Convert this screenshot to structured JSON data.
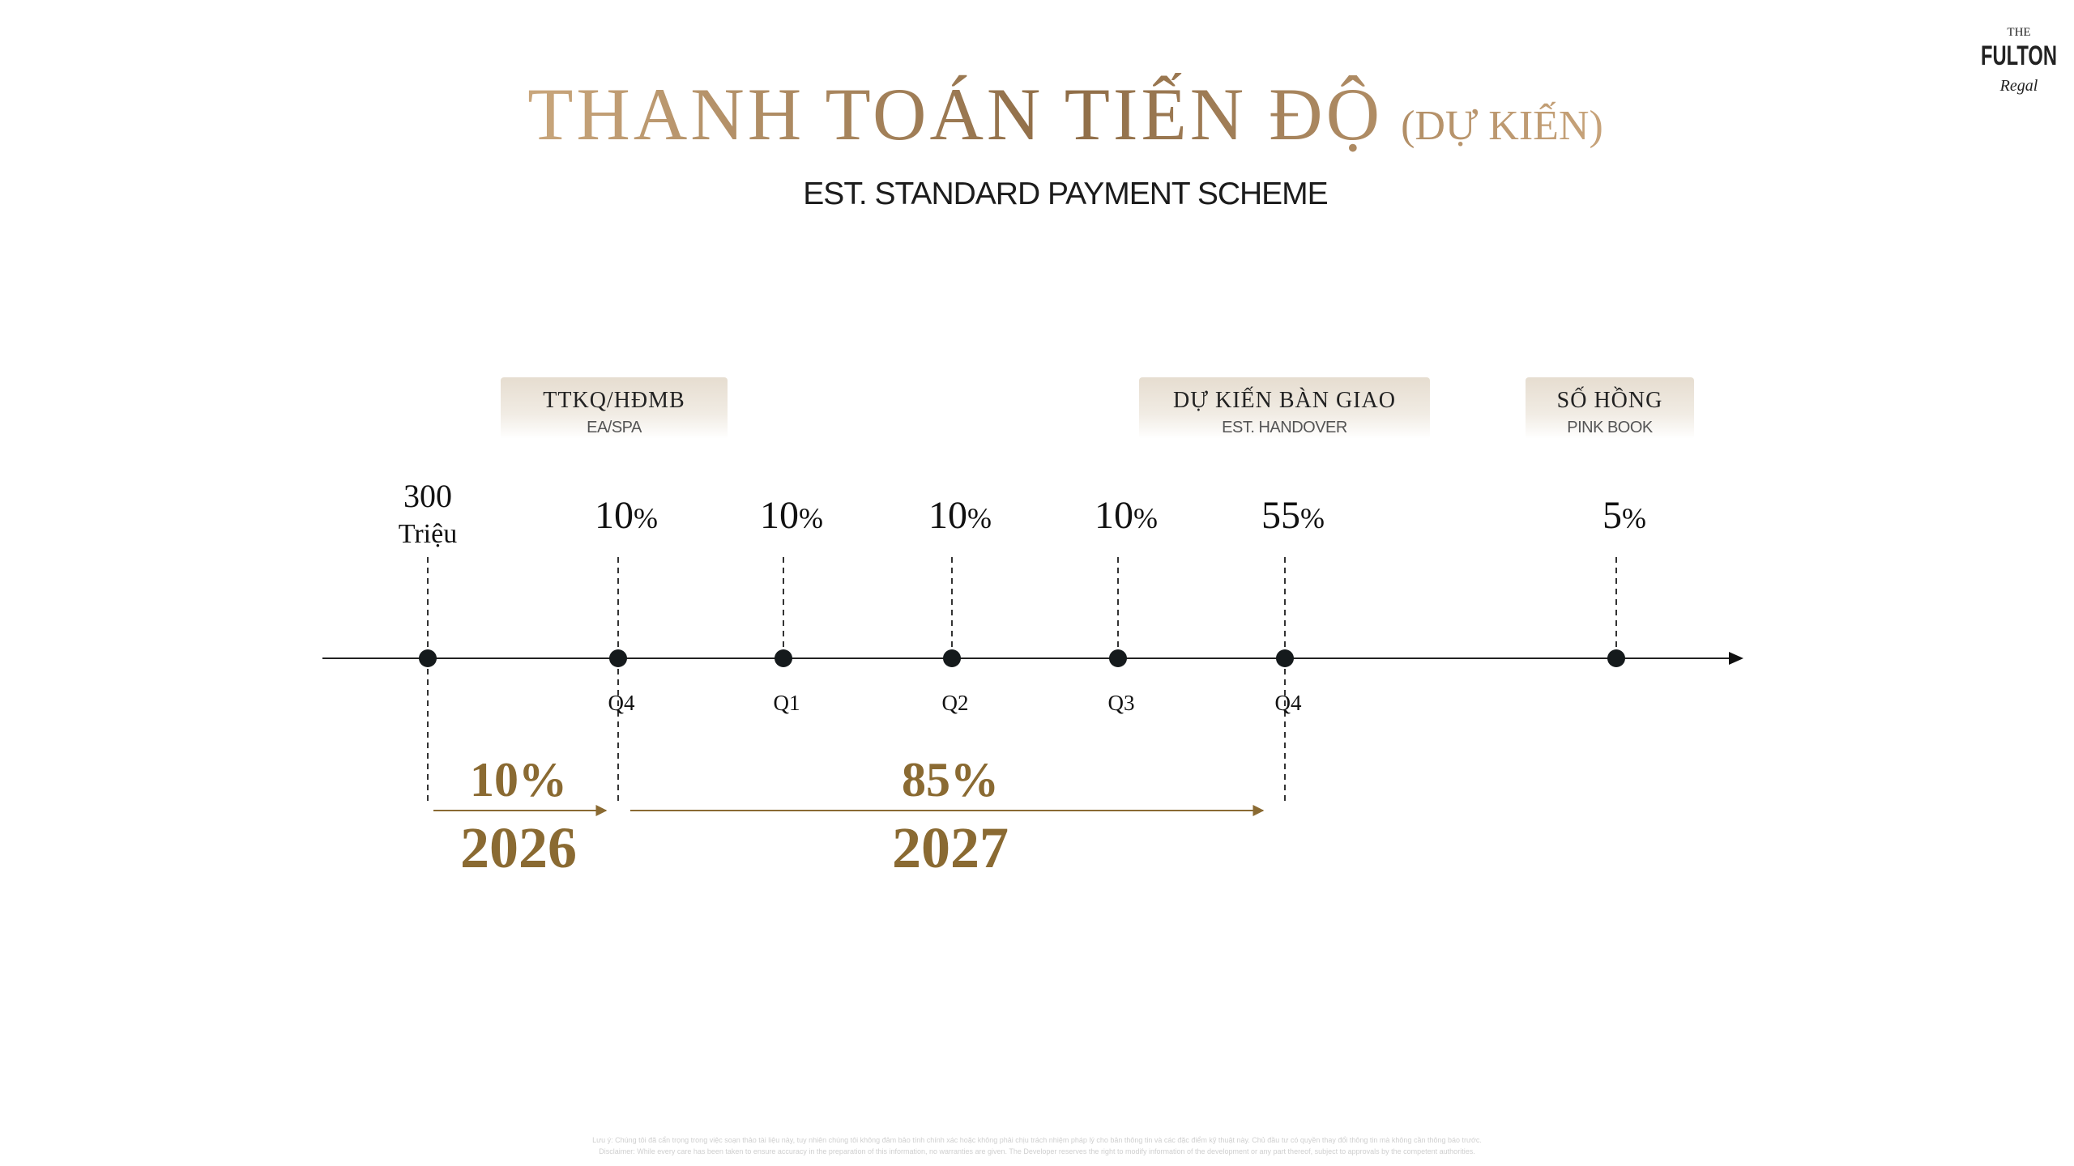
{
  "logo": {
    "top": "THE",
    "name": "FULTON",
    "script": "Regal"
  },
  "header": {
    "title": "THANH TOÁN TIẾN ĐỘ",
    "title_note": "(DỰ KIẾN)",
    "subtitle": "EST. STANDARD PAYMENT SCHEME"
  },
  "milestones": [
    {
      "label": "TTKQ/HĐMB",
      "sublabel": "EA/SPA"
    },
    {
      "label": "DỰ KIẾN BÀN GIAO",
      "sublabel": "EST. HANDOVER"
    },
    {
      "label": "SỐ HỒNG",
      "sublabel": "PINK BOOK"
    }
  ],
  "payments": [
    {
      "amount": "300",
      "unit": "Triệu"
    },
    {
      "amount": "10",
      "unit": "%",
      "quarter": "Q4"
    },
    {
      "amount": "10",
      "unit": "%",
      "quarter": "Q1"
    },
    {
      "amount": "10",
      "unit": "%",
      "quarter": "Q2"
    },
    {
      "amount": "10",
      "unit": "%",
      "quarter": "Q3"
    },
    {
      "amount": "55",
      "unit": "%",
      "quarter": "Q4"
    },
    {
      "amount": "5",
      "unit": "%"
    }
  ],
  "periods": [
    {
      "percent": "10%",
      "year": "2026"
    },
    {
      "percent": "85%",
      "year": "2027"
    }
  ],
  "disclaimer": [
    "Lưu ý: Chúng tôi đã cẩn trọng trong việc soạn thảo tài liệu này, tuy nhiên chúng tôi không đảm bảo tính chính xác hoặc không phải chịu trách nhiệm pháp lý cho bản thông tin và các đặc điểm kỹ thuật này. Chủ đầu tư có quyền thay đổi thông tin mà không cần thông báo trước.",
    "Disclaimer: While every care has been taken to ensure accuracy in the preparation of this information, no warranties are given. The Developer reserves the right to modify information of the development or any part thereof, subject to approvals by the competent authorities."
  ]
}
